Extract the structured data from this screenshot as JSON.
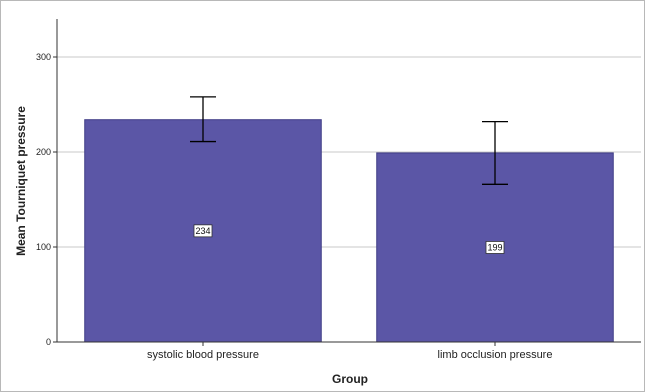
{
  "chart_data": {
    "type": "bar",
    "categories": [
      "systolic blood pressure",
      "limb occlusion pressure"
    ],
    "values": [
      234,
      199
    ],
    "data_labels": [
      "234",
      "199"
    ],
    "error_bars": [
      {
        "low": 211,
        "high": 258
      },
      {
        "low": 166,
        "high": 232
      }
    ],
    "xlabel": "Group",
    "ylabel": "Mean Tourniquet pressure",
    "ylim": [
      0,
      340
    ],
    "yticks": [
      0,
      100,
      200,
      300
    ],
    "grid": true,
    "colors": {
      "bar": "#5b56a6",
      "bar_edge": "#3f3b86",
      "grid": "#c8c8c8",
      "axis": "#333333",
      "error_bar": "#000000"
    }
  }
}
